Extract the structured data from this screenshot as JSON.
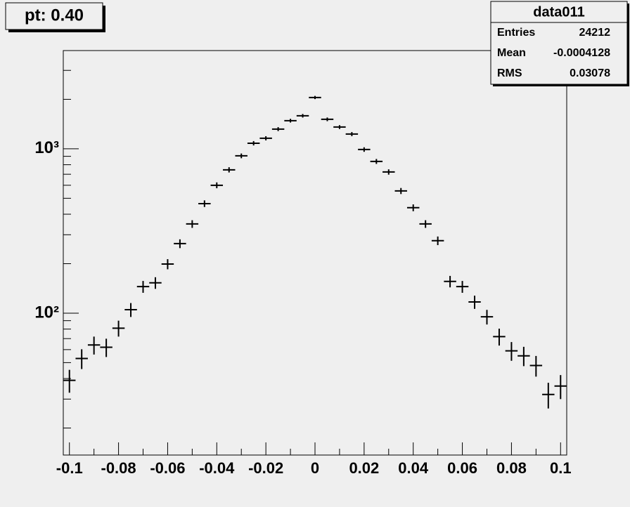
{
  "chart_data": {
    "type": "errorbar",
    "title": "pt: 0.40",
    "stats": {
      "name": "data011",
      "rows": [
        [
          "Entries",
          24212
        ],
        [
          "Mean",
          -0.0004128
        ],
        [
          "RMS",
          0.03078
        ]
      ]
    },
    "x": [
      -0.1,
      -0.095,
      -0.09,
      -0.085,
      -0.08,
      -0.075,
      -0.07,
      -0.065,
      -0.06,
      -0.055,
      -0.05,
      -0.045,
      -0.04,
      -0.035,
      -0.03,
      -0.025,
      -0.02,
      -0.015,
      -0.01,
      -0.005,
      0,
      0.005,
      0.01,
      0.015,
      0.02,
      0.025,
      0.03,
      0.035,
      0.04,
      0.045,
      0.05,
      0.055,
      0.06,
      0.065,
      0.07,
      0.075,
      0.08,
      0.085,
      0.09,
      0.095,
      0.1
    ],
    "values": [
      39,
      53,
      64,
      62,
      81,
      105,
      145,
      153,
      199,
      265,
      349,
      464,
      600,
      745,
      906,
      1081,
      1159,
      1318,
      1483,
      1589,
      2052,
      1511,
      1356,
      1229,
      990,
      838,
      723,
      554,
      438,
      349,
      276,
      156,
      145,
      117,
      95,
      72,
      59,
      55,
      48,
      32,
      36
    ],
    "errors": [
      6.2,
      7.3,
      8,
      7.9,
      9,
      10.2,
      12,
      12.4,
      14.1,
      16.3,
      18.7,
      21.5,
      24.5,
      27.3,
      30.1,
      32.9,
      34,
      36.3,
      38.5,
      39.9,
      45.3,
      38.9,
      36.8,
      35.1,
      31.5,
      28.9,
      26.9,
      23.5,
      20.9,
      18.7,
      16.6,
      12.5,
      12,
      10.8,
      9.7,
      8.5,
      7.7,
      7.4,
      6.9,
      5.7,
      6
    ],
    "color": "#000000",
    "xlim": [
      -0.1025,
      0.1025
    ],
    "xticks": [
      -0.1,
      -0.08,
      -0.06,
      -0.04,
      -0.02,
      0,
      0.02,
      0.04,
      0.06,
      0.08,
      0.1
    ],
    "xminorticks": [
      -0.09,
      -0.07,
      -0.05,
      -0.03,
      -0.01,
      0.01,
      0.03,
      0.05,
      0.07,
      0.09
    ],
    "ylim": [
      13.7,
      3960
    ],
    "ylog": true,
    "yticks": [
      {
        "value": 100,
        "label": "10²"
      },
      {
        "value": 1000,
        "label": "10³"
      }
    ],
    "yminorticks": [
      20,
      30,
      40,
      50,
      60,
      70,
      80,
      90,
      200,
      300,
      400,
      500,
      600,
      700,
      800,
      900,
      2000,
      3000
    ]
  }
}
